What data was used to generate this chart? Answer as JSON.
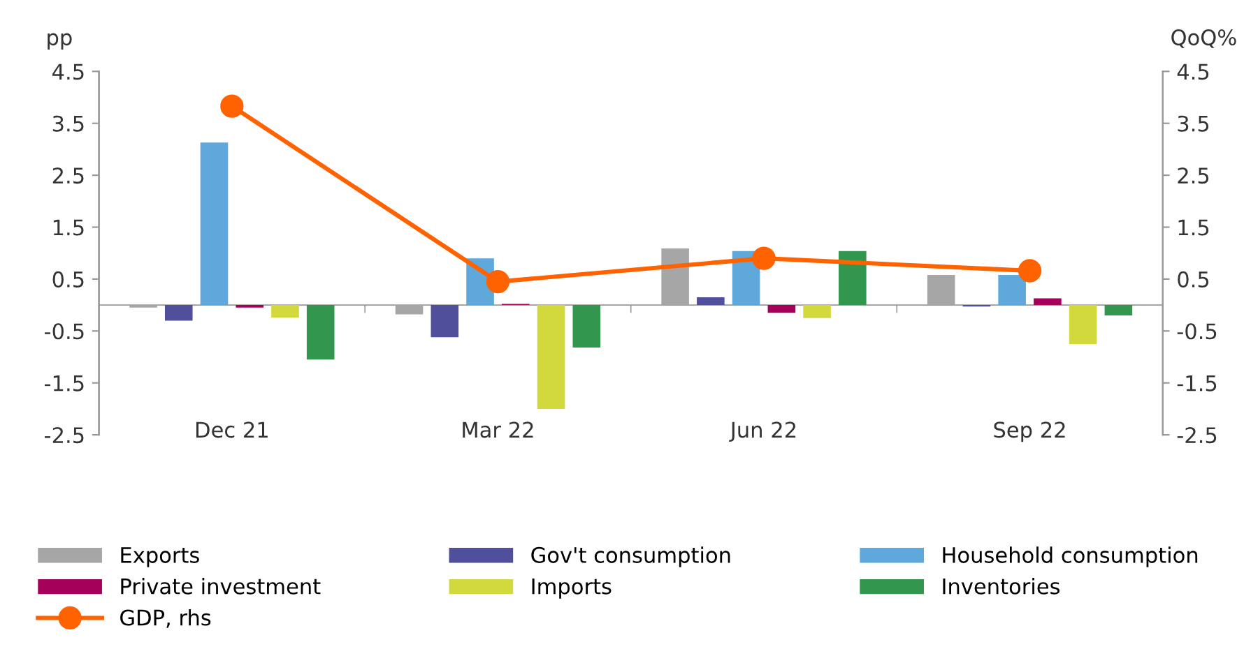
{
  "chart_data": {
    "type": "bar",
    "ylabel": "pp",
    "y2label": "QoQ%",
    "categories": [
      "Dec 21",
      "Mar 22",
      "Jun 22",
      "Sep 22"
    ],
    "series": [
      {
        "name": "Exports",
        "color": "#a6a6a6",
        "values": [
          -0.05,
          -0.18,
          1.09,
          0.58
        ]
      },
      {
        "name": "Gov't consumption",
        "color": "#4f4f9b",
        "values": [
          -0.3,
          -0.62,
          0.15,
          -0.03
        ]
      },
      {
        "name": "Household consumption",
        "color": "#5ea8dc",
        "values": [
          3.13,
          0.9,
          1.04,
          0.58
        ]
      },
      {
        "name": "Private investment",
        "color": "#a5005a",
        "values": [
          -0.05,
          0.02,
          -0.15,
          0.13
        ]
      },
      {
        "name": "Imports",
        "color": "#d1d93c",
        "values": [
          -0.24,
          -2.0,
          -0.25,
          -0.75
        ]
      },
      {
        "name": "Inventories",
        "color": "#33964f",
        "values": [
          -1.05,
          -0.82,
          1.04,
          -0.2
        ]
      },
      {
        "name": "GDP, rhs",
        "type": "line",
        "axis": "y2",
        "color": "#ff6200",
        "marker": "circle",
        "values": [
          3.83,
          0.45,
          0.9,
          0.66
        ]
      }
    ],
    "ylim": [
      -2.5,
      4.5
    ],
    "yticks": [
      -2.5,
      -1.5,
      -0.5,
      0.5,
      1.5,
      2.5,
      3.5,
      4.5
    ],
    "y2lim": [
      -2.5,
      4.5
    ],
    "y2ticks": [
      -2.5,
      -1.5,
      -0.5,
      0.5,
      1.5,
      2.5,
      3.5,
      4.5
    ],
    "grid": false,
    "legend": "bottom"
  }
}
